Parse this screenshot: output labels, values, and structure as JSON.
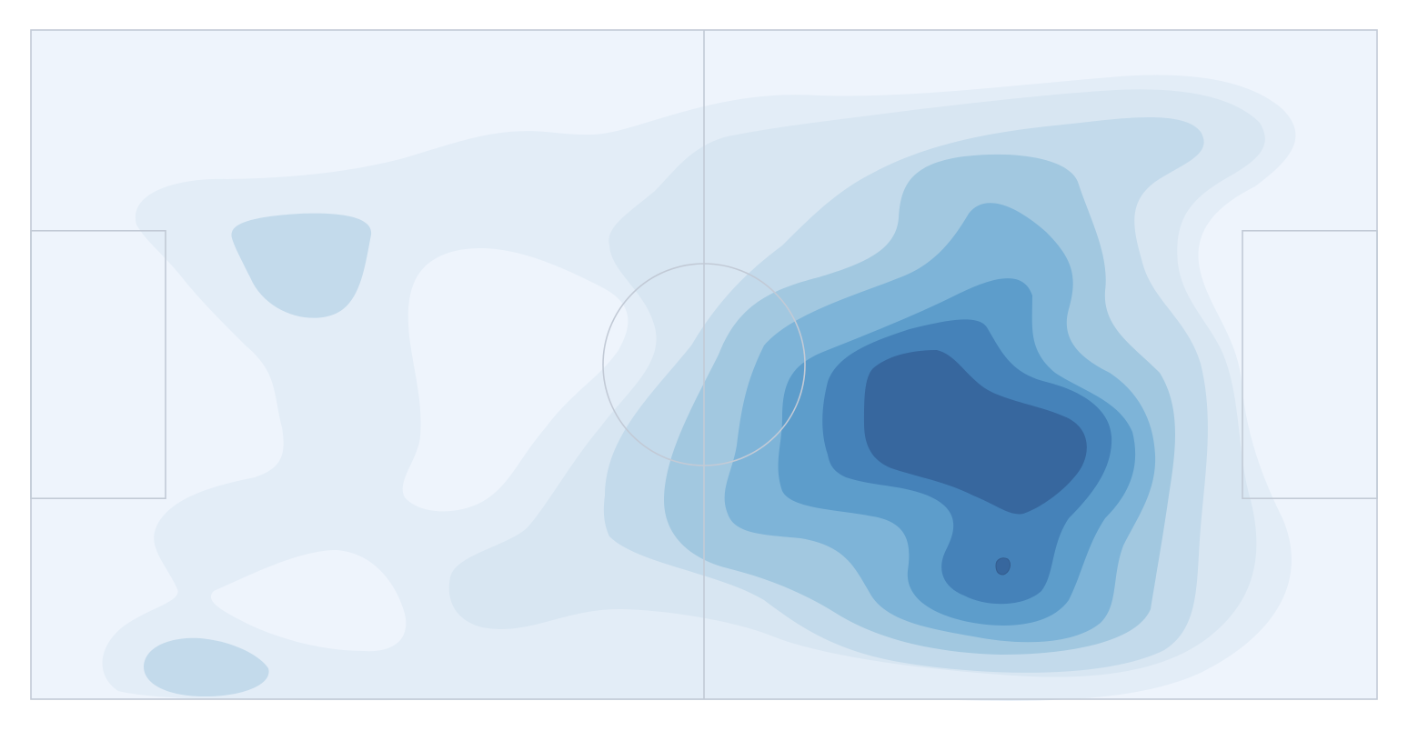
{
  "chart_data": {
    "type": "heatmap",
    "title": "",
    "xlabel": "",
    "ylabel": "",
    "x_range": [
      0,
      120
    ],
    "y_range": [
      0,
      60
    ],
    "grid": false,
    "legend": "none",
    "pitch_elements": [
      "pitch-outline",
      "halfway-line",
      "center-circle",
      "left-penalty-box",
      "right-penalty-box"
    ],
    "colors": {
      "pitch_fill": "#eef4fc",
      "pitch_line": "#c2cad6",
      "levels": [
        "#e3edf7",
        "#d8e6f2",
        "#c3daeb",
        "#a2c8e0",
        "#7eb4d8",
        "#5d9dcb",
        "#4582b9",
        "#37679e"
      ],
      "outline": "#345d8f"
    },
    "density_levels": [
      {
        "level": 1,
        "color": "#e3edf7"
      },
      {
        "level": 2,
        "color": "#d8e6f2"
      },
      {
        "level": 3,
        "color": "#c3daeb"
      },
      {
        "level": 4,
        "color": "#a2c8e0"
      },
      {
        "level": 5,
        "color": "#7eb4d8"
      },
      {
        "level": 6,
        "color": "#5d9dcb"
      },
      {
        "level": 7,
        "color": "#4582b9"
      },
      {
        "level": 8,
        "color": "#37679e"
      }
    ],
    "peak_region": {
      "x": [
        75,
        95
      ],
      "y": [
        29,
        44
      ]
    },
    "secondary_peak": {
      "x": 87,
      "y": 48.5
    }
  }
}
